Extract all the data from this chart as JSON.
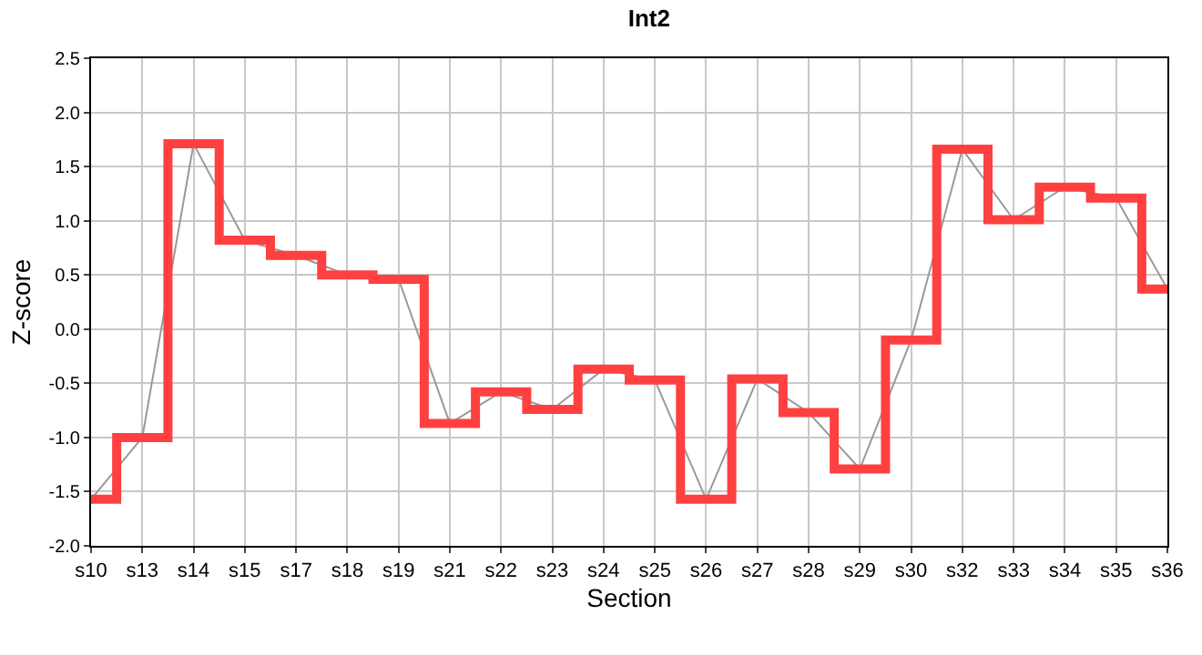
{
  "chart_data": {
    "type": "line",
    "title": "Int2",
    "xlabel": "Section",
    "ylabel": "Z-score",
    "categories": [
      "s10",
      "s13",
      "s14",
      "s15",
      "s17",
      "s18",
      "s19",
      "s21",
      "s22",
      "s23",
      "s24",
      "s25",
      "s26",
      "s27",
      "s28",
      "s29",
      "s30",
      "s32",
      "s33",
      "s34",
      "s35",
      "s36"
    ],
    "series": [
      {
        "color": "#999999",
        "values": [
          -1.57,
          -1.0,
          1.71,
          0.82,
          0.68,
          0.5,
          0.46,
          -0.87,
          -0.58,
          -0.74,
          -0.37,
          -0.47,
          -1.57,
          -0.46,
          -0.77,
          -1.29,
          -0.1,
          1.66,
          1.01,
          1.31,
          1.21,
          0.37
        ]
      },
      {
        "type": "step",
        "color": "#ff4040",
        "values": [
          -1.57,
          -1.0,
          1.71,
          0.82,
          0.68,
          0.5,
          0.46,
          -0.87,
          -0.58,
          -0.74,
          -0.37,
          -0.47,
          -1.57,
          -0.46,
          -0.77,
          -1.29,
          -0.1,
          1.66,
          1.01,
          1.31,
          1.21,
          0.37
        ]
      }
    ],
    "ylim": [
      -2.0,
      2.5
    ],
    "yticks": [
      {
        "value": -2,
        "label": "-2.0"
      },
      {
        "value": -1.5,
        "label": "-1.5"
      },
      {
        "value": -1,
        "label": "-1.0"
      },
      {
        "value": -0.5,
        "label": "-0.5"
      },
      {
        "value": 0,
        "label": "0.0"
      },
      {
        "value": 0.5,
        "label": "0.5"
      },
      {
        "value": 1,
        "label": "1.0"
      },
      {
        "value": 1.5,
        "label": "1.5"
      },
      {
        "value": 2,
        "label": "2.0"
      },
      {
        "value": 2.5,
        "label": "2.5"
      }
    ],
    "grid": true,
    "marker": "none"
  }
}
